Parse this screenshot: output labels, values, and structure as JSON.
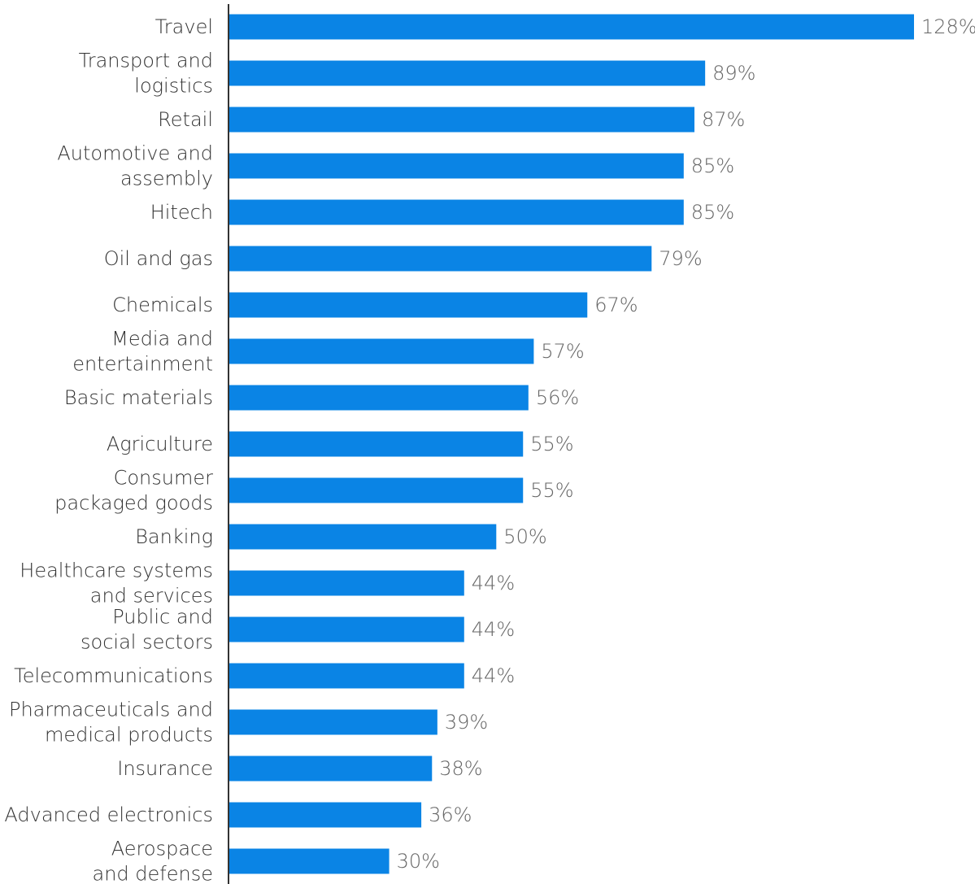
{
  "chart_data": {
    "type": "bar",
    "orientation": "horizontal",
    "title": "",
    "xlabel": "",
    "ylabel": "",
    "categories": [
      [
        "Travel"
      ],
      [
        "Transport and",
        "logistics"
      ],
      [
        "Retail"
      ],
      [
        "Automotive and",
        "assembly"
      ],
      [
        "Hitech"
      ],
      [
        "Oil and gas"
      ],
      [
        "Chemicals"
      ],
      [
        "Media and",
        "entertainment"
      ],
      [
        "Basic materials"
      ],
      [
        "Agriculture"
      ],
      [
        "Consumer",
        "packaged goods"
      ],
      [
        "Banking"
      ],
      [
        "Healthcare systems",
        "and services"
      ],
      [
        "Public and",
        "social sectors"
      ],
      [
        "Telecommunications"
      ],
      [
        "Pharmaceuticals and",
        "medical products"
      ],
      [
        "Insurance"
      ],
      [
        "Advanced electronics"
      ],
      [
        "Aerospace",
        "and defense"
      ]
    ],
    "values": [
      128,
      89,
      87,
      85,
      85,
      79,
      67,
      57,
      56,
      55,
      55,
      50,
      44,
      44,
      44,
      39,
      38,
      36,
      30
    ],
    "value_labels": [
      "128%",
      "89%",
      "87%",
      "85%",
      "85%",
      "79%",
      "67%",
      "57%",
      "56%",
      "55%",
      "55%",
      "50%",
      "44%",
      "44%",
      "44%",
      "39%",
      "38%",
      "36%",
      "30%"
    ],
    "xlim": [
      0,
      128
    ],
    "grid": false,
    "legend": "none",
    "bar_color": "#0A84E5",
    "axis_color": "#333333"
  }
}
